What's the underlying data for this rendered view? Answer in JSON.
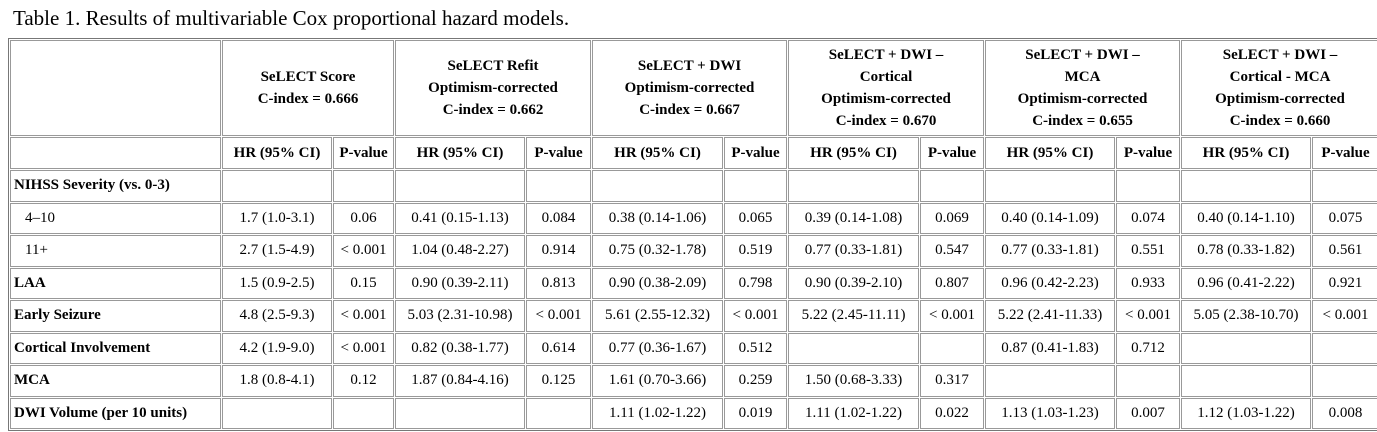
{
  "title": "Table 1. Results of multivariable Cox proportional hazard models.",
  "table": {
    "models": [
      {
        "lines": [
          "SeLECT Score",
          "C-index = 0.666"
        ]
      },
      {
        "lines": [
          "SeLECT Refit",
          "Optimism-corrected",
          "C-index = 0.662"
        ]
      },
      {
        "lines": [
          "SeLECT + DWI",
          "Optimism-corrected",
          "C-index = 0.667"
        ]
      },
      {
        "lines": [
          "SeLECT + DWI –",
          "Cortical",
          "Optimism-corrected",
          "C-index = 0.670"
        ]
      },
      {
        "lines": [
          "SeLECT + DWI –",
          "MCA",
          "Optimism-corrected",
          "C-index = 0.655"
        ]
      },
      {
        "lines": [
          "SeLECT + DWI –",
          "Cortical - MCA",
          "Optimism-corrected",
          "C-index = 0.660"
        ]
      }
    ],
    "subheaders": [
      "HR (95% CI)",
      "P-value",
      "HR (95% CI)",
      "P-value",
      "HR (95% CI)",
      "P-value",
      "HR (95% CI)",
      "P-value",
      "HR (95% CI)",
      "P-value",
      "HR (95% CI)",
      "P-value"
    ],
    "rows": [
      {
        "label": "NIHSS Severity (vs. 0-3)",
        "sub": false,
        "cells": [
          null,
          null,
          null,
          null,
          null,
          null,
          null,
          null,
          null,
          null,
          null,
          null
        ]
      },
      {
        "label": "4–10",
        "sub": true,
        "cells": [
          "1.7 (1.0-3.1)",
          "0.06",
          "0.41 (0.15-1.13)",
          "0.084",
          "0.38 (0.14-1.06)",
          "0.065",
          "0.39 (0.14-1.08)",
          "0.069",
          "0.40 (0.14-1.09)",
          "0.074",
          "0.40 (0.14-1.10)",
          "0.075"
        ]
      },
      {
        "label": "11+",
        "sub": true,
        "cells": [
          "2.7 (1.5-4.9)",
          "< 0.001",
          "1.04 (0.48-2.27)",
          "0.914",
          "0.75 (0.32-1.78)",
          "0.519",
          "0.77 (0.33-1.81)",
          "0.547",
          "0.77 (0.33-1.81)",
          "0.551",
          "0.78 (0.33-1.82)",
          "0.561"
        ]
      },
      {
        "label": "LAA",
        "sub": false,
        "cells": [
          "1.5 (0.9-2.5)",
          "0.15",
          "0.90 (0.39-2.11)",
          "0.813",
          "0.90 (0.38-2.09)",
          "0.798",
          "0.90 (0.39-2.10)",
          "0.807",
          "0.96 (0.42-2.23)",
          "0.933",
          "0.96 (0.41-2.22)",
          "0.921"
        ]
      },
      {
        "label": "Early Seizure",
        "sub": false,
        "cells": [
          "4.8 (2.5-9.3)",
          "< 0.001",
          "5.03 (2.31-10.98)",
          "< 0.001",
          "5.61 (2.55-12.32)",
          "< 0.001",
          "5.22 (2.45-11.11)",
          "< 0.001",
          "5.22 (2.41-11.33)",
          "< 0.001",
          "5.05 (2.38-10.70)",
          "< 0.001"
        ]
      },
      {
        "label": "Cortical Involvement",
        "sub": false,
        "cells": [
          "4.2 (1.9-9.0)",
          "< 0.001",
          "0.82 (0.38-1.77)",
          "0.614",
          "0.77 (0.36-1.67)",
          "0.512",
          null,
          null,
          "0.87 (0.41-1.83)",
          "0.712",
          null,
          null
        ]
      },
      {
        "label": "MCA",
        "sub": false,
        "cells": [
          "1.8 (0.8-4.1)",
          "0.12",
          "1.87 (0.84-4.16)",
          "0.125",
          "1.61 (0.70-3.66)",
          "0.259",
          "1.50 (0.68-3.33)",
          "0.317",
          null,
          null,
          null,
          null
        ]
      },
      {
        "label": "DWI Volume (per 10 units)",
        "sub": false,
        "cells": [
          null,
          null,
          null,
          null,
          "1.11 (1.02-1.22)",
          "0.019",
          "1.11 (1.02-1.22)",
          "0.022",
          "1.13 (1.03-1.23)",
          "0.007",
          "1.12 (1.03-1.22)",
          "0.008"
        ]
      }
    ]
  }
}
